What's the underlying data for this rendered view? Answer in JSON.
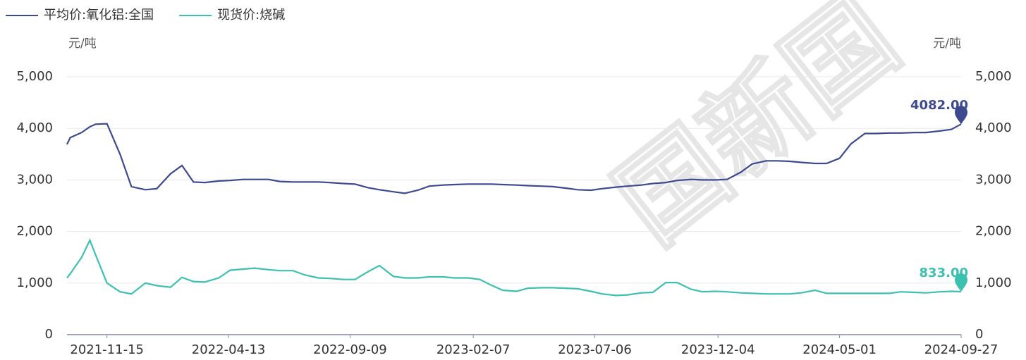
{
  "chart_data": {
    "type": "line",
    "watermark": "国新国",
    "y_unit": "元/吨",
    "y2_unit": "元/吨",
    "xlim": [
      "2021-09-27",
      "2024-09-27"
    ],
    "xticks": [
      "2021-11-15",
      "2022-04-13",
      "2022-09-09",
      "2023-02-07",
      "2023-07-06",
      "2023-12-04",
      "2024-05-01",
      "2024-09-27"
    ],
    "ylim": [
      0,
      5000
    ],
    "yticks": [
      0,
      {
        "value": 1000,
        "label": "1,000"
      },
      {
        "value": 2000,
        "label": "2,000"
      },
      {
        "value": 3000,
        "label": "3,000"
      },
      {
        "value": 4000,
        "label": "4,000"
      },
      {
        "value": 5000,
        "label": "5,000"
      }
    ],
    "y2lim": [
      0,
      5000
    ],
    "y2ticks": [
      0,
      {
        "value": 1000,
        "label": "1,000"
      },
      {
        "value": 2000,
        "label": "2,000"
      },
      {
        "value": 3000,
        "label": "3,000"
      },
      {
        "value": 4000,
        "label": "4,000"
      },
      {
        "value": 5000,
        "label": "5,000"
      }
    ],
    "grid": true,
    "legend": "top-left",
    "x": [
      "2021-09-27",
      "2021-10-01",
      "2021-10-15",
      "2021-10-25",
      "2021-11-01",
      "2021-11-15",
      "2021-12-01",
      "2021-12-15",
      "2022-01-01",
      "2022-01-15",
      "2022-02-01",
      "2022-02-15",
      "2022-03-01",
      "2022-03-15",
      "2022-04-01",
      "2022-04-15",
      "2022-05-01",
      "2022-05-15",
      "2022-06-01",
      "2022-06-15",
      "2022-07-01",
      "2022-07-15",
      "2022-08-01",
      "2022-08-15",
      "2022-09-01",
      "2022-09-15",
      "2022-10-01",
      "2022-10-15",
      "2022-11-01",
      "2022-11-15",
      "2022-12-01",
      "2022-12-15",
      "2023-01-01",
      "2023-01-15",
      "2023-02-01",
      "2023-02-15",
      "2023-03-01",
      "2023-03-15",
      "2023-04-01",
      "2023-04-15",
      "2023-05-01",
      "2023-05-15",
      "2023-06-01",
      "2023-06-15",
      "2023-07-01",
      "2023-07-15",
      "2023-08-01",
      "2023-08-15",
      "2023-09-01",
      "2023-09-15",
      "2023-10-01",
      "2023-10-15",
      "2023-11-01",
      "2023-11-15",
      "2023-12-01",
      "2023-12-15",
      "2024-01-01",
      "2024-01-15",
      "2024-02-01",
      "2024-02-15",
      "2024-03-01",
      "2024-03-15",
      "2024-04-01",
      "2024-04-15",
      "2024-05-01",
      "2024-05-15",
      "2024-06-01",
      "2024-06-15",
      "2024-07-01",
      "2024-07-15",
      "2024-08-01",
      "2024-08-15",
      "2024-09-01",
      "2024-09-15",
      "2024-09-27"
    ],
    "series": [
      {
        "name": "平均价:氧化铝:全国",
        "color": "#3d4a8f",
        "values": [
          3690,
          3820,
          3920,
          4030,
          4080,
          4090,
          3500,
          2870,
          2810,
          2830,
          3120,
          3280,
          2960,
          2950,
          2980,
          2990,
          3010,
          3010,
          3010,
          2970,
          2960,
          2960,
          2960,
          2950,
          2930,
          2920,
          2850,
          2810,
          2770,
          2740,
          2800,
          2880,
          2900,
          2910,
          2920,
          2920,
          2920,
          2910,
          2900,
          2890,
          2880,
          2870,
          2840,
          2810,
          2800,
          2830,
          2860,
          2880,
          2900,
          2930,
          2950,
          2990,
          3010,
          3000,
          3000,
          3010,
          3150,
          3310,
          3370,
          3370,
          3360,
          3340,
          3320,
          3320,
          3420,
          3700,
          3900,
          3900,
          3910,
          3910,
          3920,
          3920,
          3950,
          3980,
          4082
        ],
        "value_labels": [
          null,
          null,
          null,
          null,
          null,
          null,
          null,
          null,
          null,
          null,
          null,
          null,
          null,
          null,
          null,
          null,
          null,
          null,
          null,
          null,
          null,
          null,
          null,
          null,
          null,
          null,
          null,
          null,
          null,
          null,
          null,
          null,
          null,
          null,
          null,
          null,
          null,
          null,
          null,
          null,
          null,
          null,
          null,
          null,
          null,
          null,
          null,
          null,
          null,
          null,
          null,
          null,
          null,
          null,
          null,
          null,
          null,
          null,
          null,
          null,
          null,
          null,
          null,
          null,
          null,
          null,
          null,
          null,
          null,
          null,
          null,
          null,
          null,
          null,
          "4082.00"
        ]
      },
      {
        "name": "现货价:烧碱",
        "color": "#3cc0b0",
        "values": [
          1100,
          1180,
          1500,
          1830,
          1550,
          1000,
          830,
          790,
          1000,
          950,
          920,
          1110,
          1030,
          1020,
          1100,
          1250,
          1270,
          1290,
          1260,
          1240,
          1240,
          1160,
          1100,
          1090,
          1070,
          1070,
          1220,
          1340,
          1130,
          1100,
          1100,
          1120,
          1120,
          1100,
          1100,
          1070,
          960,
          860,
          840,
          900,
          910,
          910,
          900,
          890,
          840,
          790,
          760,
          770,
          810,
          820,
          1010,
          1010,
          880,
          830,
          840,
          830,
          810,
          800,
          790,
          790,
          790,
          810,
          860,
          800,
          800,
          800,
          800,
          800,
          800,
          830,
          820,
          810,
          830,
          840,
          833
        ],
        "value_labels": [
          null,
          null,
          null,
          null,
          null,
          null,
          null,
          null,
          null,
          null,
          null,
          null,
          null,
          null,
          null,
          null,
          null,
          null,
          null,
          null,
          null,
          null,
          null,
          null,
          null,
          null,
          null,
          null,
          null,
          null,
          null,
          null,
          null,
          null,
          null,
          null,
          null,
          null,
          null,
          null,
          null,
          null,
          null,
          null,
          null,
          null,
          null,
          null,
          null,
          null,
          null,
          null,
          null,
          null,
          null,
          null,
          null,
          null,
          null,
          null,
          null,
          null,
          null,
          null,
          null,
          null,
          null,
          null,
          null,
          null,
          null,
          null,
          null,
          null,
          "833.00"
        ]
      }
    ]
  }
}
